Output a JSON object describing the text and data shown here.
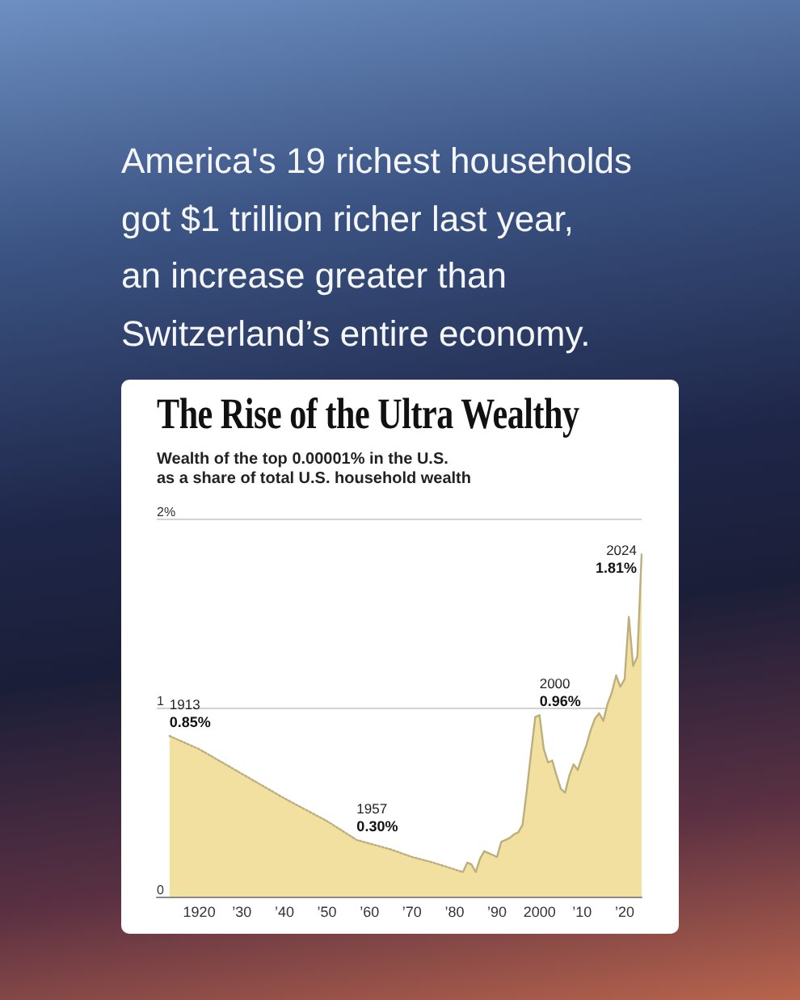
{
  "chart_data": {
    "type": "area",
    "title": "The Rise of the Ultra Wealthy",
    "subtitle": "Wealth of the top 0.00001% in the U.S.\nas a share of total U.S. household wealth",
    "annotations": [
      "America's 19 richest households\ngot $1 trillion richer last year,\nan increase greater than\nSwitzerland’s entire economy.",
      {
        "text": "1913\n0.85%",
        "x": 1913,
        "y": 0.85
      },
      {
        "text": "1957\n0.30%",
        "x": 1957,
        "y": 0.3
      },
      {
        "text": "2000\n0.96%",
        "x": 2000,
        "y": 0.96
      },
      {
        "text": "2024\n1.81%",
        "x": 2024,
        "y": 1.81
      }
    ],
    "series": [
      {
        "color": "#f2e0a0",
        "line_style": "dotted",
        "x": [
          1913,
          1920,
          1930,
          1940,
          1950,
          1957,
          1965,
          1970,
          1975,
          1982
        ],
        "values": [
          0.85,
          0.78,
          0.65,
          0.52,
          0.4,
          0.3,
          0.25,
          0.21,
          0.18,
          0.13
        ]
      },
      {
        "color": "#f2e0a0",
        "line_style": "solid",
        "x": [
          1982,
          1983,
          1984,
          1985,
          1986,
          1987,
          1988,
          1989,
          1990,
          1991,
          1992,
          1993,
          1994,
          1995,
          1996,
          1997,
          1998,
          1999,
          2000,
          2001,
          2002,
          2003,
          2004,
          2005,
          2006,
          2007,
          2008,
          2009,
          2010,
          2011,
          2012,
          2013,
          2014,
          2015,
          2016,
          2017,
          2018,
          2019,
          2020,
          2021,
          2022,
          2023,
          2024
        ],
        "values": [
          0.13,
          0.18,
          0.17,
          0.13,
          0.2,
          0.24,
          0.23,
          0.22,
          0.21,
          0.29,
          0.3,
          0.31,
          0.33,
          0.34,
          0.38,
          0.56,
          0.76,
          0.95,
          0.96,
          0.78,
          0.71,
          0.72,
          0.64,
          0.57,
          0.55,
          0.64,
          0.7,
          0.67,
          0.74,
          0.8,
          0.88,
          0.94,
          0.97,
          0.93,
          1.02,
          1.08,
          1.17,
          1.11,
          1.15,
          1.48,
          1.22,
          1.27,
          1.81
        ]
      }
    ],
    "xlim": [
      1910,
      2024
    ],
    "xticks": [
      1920,
      {
        "value": 1930,
        "label": "’30"
      },
      {
        "value": 1940,
        "label": "’40"
      },
      {
        "value": 1950,
        "label": "’50"
      },
      {
        "value": 1960,
        "label": "’60"
      },
      {
        "value": 1970,
        "label": "’70"
      },
      {
        "value": 1980,
        "label": "’80"
      },
      {
        "value": 1990,
        "label": "’90"
      },
      2000,
      {
        "value": 2010,
        "label": "’10"
      },
      {
        "value": 2020,
        "label": "’20"
      }
    ],
    "ylim": [
      0,
      2
    ],
    "yticks": [
      0,
      1,
      {
        "value": 2,
        "label": "2%"
      }
    ],
    "grid": "y",
    "marker": "none"
  }
}
